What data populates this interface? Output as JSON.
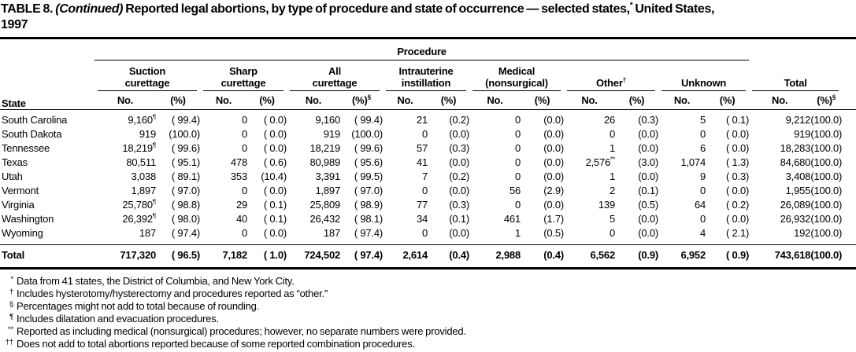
{
  "title": {
    "prefix": "TABLE 8. ",
    "continued": "(Continued)",
    "line1_rest": " Reported legal abortions, by type of procedure and state of occurrence — selected states,",
    "footnote_marker": "*",
    "line1_end": " United States,",
    "line2": "1997"
  },
  "table": {
    "procedure_label": "Procedure",
    "state_label": "State",
    "groups": [
      {
        "label": "Suction\ncurettage",
        "no_label": "No.",
        "pct_label": "(%)"
      },
      {
        "label": "Sharp\ncurettage",
        "no_label": "No.",
        "pct_label": "(%)"
      },
      {
        "label": "All\ncurettage",
        "no_label": "No.",
        "pct_label": "(%)",
        "pct_sup": "§"
      },
      {
        "label": "Intrauterine\ninstillation",
        "no_label": "No.",
        "pct_label": "(%)"
      },
      {
        "label": "Medical\n(nonsurgical)",
        "no_label": "No.",
        "pct_label": "(%)"
      },
      {
        "label": "Other",
        "sup": "†",
        "no_label": "No.",
        "pct_label": "(%)"
      },
      {
        "label": "Unknown",
        "no_label": "No.",
        "pct_label": "(%)"
      },
      {
        "label": "Total",
        "no_label": "No.",
        "pct_label": "(%)",
        "pct_sup": "§"
      }
    ],
    "rows": [
      {
        "state": "South Carolina",
        "cells": [
          "9,160¶",
          "( 99.4)",
          "0",
          "( 0.0)",
          "9,160",
          "( 99.4)",
          "21",
          "(0.2)",
          "0",
          "(0.0)",
          "26",
          "(0.3)",
          "5",
          "( 0.1)",
          "9,212",
          "(100.0)"
        ]
      },
      {
        "state": "South Dakota",
        "cells": [
          "919",
          "(100.0)",
          "0",
          "( 0.0)",
          "919",
          "(100.0)",
          "0",
          "(0.0)",
          "0",
          "(0.0)",
          "0",
          "(0.0)",
          "0",
          "( 0.0)",
          "919",
          "(100.0)"
        ]
      },
      {
        "state": "Tennessee",
        "cells": [
          "18,219¶",
          "( 99.6)",
          "0",
          "( 0.0)",
          "18,219",
          "( 99.6)",
          "57",
          "(0.3)",
          "0",
          "(0.0)",
          "1",
          "(0.0)",
          "6",
          "( 0.0)",
          "18,283",
          "(100.0)"
        ]
      },
      {
        "state": "Texas",
        "cells": [
          "80,511",
          "( 95.1)",
          "478",
          "( 0.6)",
          "80,989",
          "( 95.6)",
          "41",
          "(0.0)",
          "0",
          "(0.0)",
          "2,576**",
          "(3.0)",
          "1,074",
          "( 1.3)",
          "84,680",
          "(100.0)"
        ]
      },
      {
        "state": "Utah",
        "cells": [
          "3,038",
          "( 89.1)",
          "353",
          "(10.4)",
          "3,391",
          "( 99.5)",
          "7",
          "(0.2)",
          "0",
          "(0.0)",
          "1",
          "(0.0)",
          "9",
          "( 0.3)",
          "3,408",
          "(100.0)"
        ]
      },
      {
        "state": "Vermont",
        "cells": [
          "1,897",
          "( 97.0)",
          "0",
          "( 0.0)",
          "1,897",
          "( 97.0)",
          "0",
          "(0.0)",
          "56",
          "(2.9)",
          "2",
          "(0.1)",
          "0",
          "( 0.0)",
          "1,955",
          "(100.0)"
        ]
      },
      {
        "state": "Virginia",
        "cells": [
          "25,780¶",
          "( 98.8)",
          "29",
          "( 0.1)",
          "25,809",
          "( 98.9)",
          "77",
          "(0.3)",
          "0",
          "(0.0)",
          "139",
          "(0.5)",
          "64",
          "( 0.2)",
          "26,089",
          "(100.0)"
        ]
      },
      {
        "state": "Washington",
        "cells": [
          "26,392¶",
          "( 98.0)",
          "40",
          "( 0.1)",
          "26,432",
          "( 98.1)",
          "34",
          "(0.1)",
          "461",
          "(1.7)",
          "5",
          "(0.0)",
          "0",
          "( 0.0)",
          "26,932",
          "(100.0)"
        ]
      },
      {
        "state": "Wyoming",
        "cells": [
          "187",
          "( 97.4)",
          "0",
          "( 0.0)",
          "187",
          "( 97.4)",
          "0",
          "(0.0)",
          "1",
          "(0.5)",
          "0",
          "(0.0)",
          "4",
          "( 2.1)",
          "192",
          "(100.0)"
        ]
      },
      {
        "state": "Total",
        "is_total": true,
        "cells": [
          "717,320",
          "( 96.5)",
          "7,182",
          "( 1.0)",
          "724,502",
          "( 97.4)",
          "2,614",
          "(0.4)",
          "2,988",
          "(0.4)",
          "6,562",
          "(0.9)",
          "6,952",
          "( 0.9)",
          "743,618",
          "(100.0)"
        ]
      }
    ]
  },
  "footnotes": [
    {
      "marker": "*",
      "text": "Data from 41 states, the District of Columbia, and New York City."
    },
    {
      "marker": "†",
      "text": "Includes hysterotomy/hysterectomy and procedures reported as “other.”"
    },
    {
      "marker": "§",
      "text": "Percentages might not add to total because of rounding."
    },
    {
      "marker": "¶",
      "text": "Includes dilatation and evacuation procedures."
    },
    {
      "marker": "**",
      "text": "Reported as including medical (nonsurgical) procedures; however, no separate numbers were provided."
    },
    {
      "marker": "††",
      "text": "Does not add to total abortions reported because of some reported combination procedures."
    }
  ]
}
